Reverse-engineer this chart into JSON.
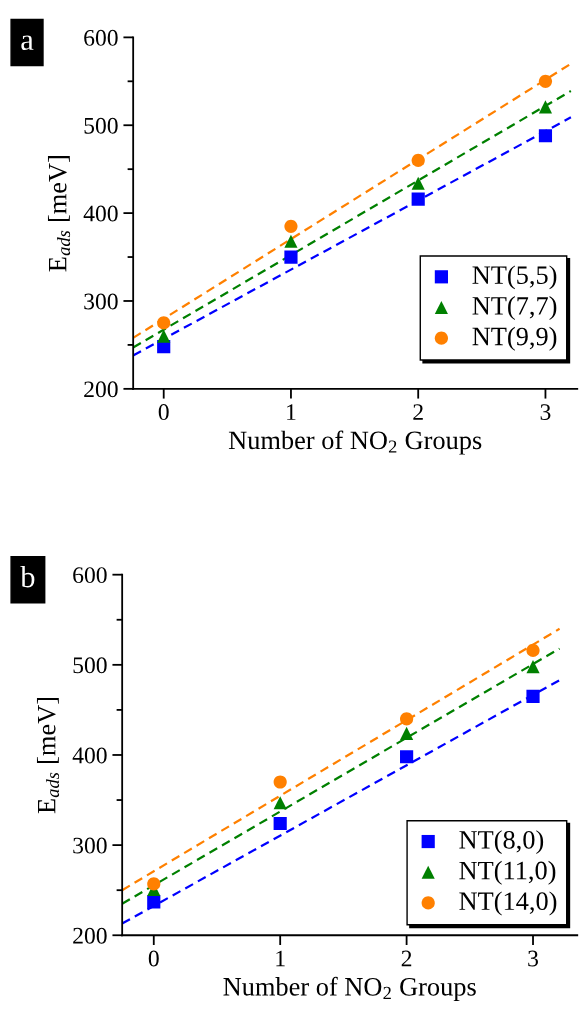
{
  "chart_data": [
    {
      "type": "scatter",
      "xlabel": "Number of NO$_{2}$ Groups",
      "ylabel": "E$_{ads}$ [meV]",
      "x": [
        0,
        1,
        2,
        3
      ],
      "xlim": [
        -0.24,
        3.25
      ],
      "ylim": [
        200,
        600
      ],
      "xticks": [
        0,
        1,
        2,
        3
      ],
      "yticks": [
        200,
        300,
        400,
        500,
        600
      ],
      "legend": "right",
      "grid": false,
      "annotations": [
        "a"
      ],
      "series": [
        {
          "name": "NT(5,5)",
          "color": "#0000ff",
          "marker": "square",
          "values": [
            248,
            350,
            416,
            488
          ]
        },
        {
          "name": "NT(7,7)",
          "color": "#008000",
          "marker": "triangle",
          "values": [
            260,
            368,
            434,
            521
          ]
        },
        {
          "name": "NT(9,9)",
          "color": "#ff8000",
          "marker": "circle",
          "values": [
            275,
            385,
            460,
            550
          ]
        },
        {
          "type": "line",
          "color": "#0000ff",
          "line_style": "dashed",
          "x": [
            -0.24,
            3.2
          ],
          "values": [
            238,
            509
          ]
        },
        {
          "type": "line",
          "color": "#008000",
          "line_style": "dashed",
          "x": [
            -0.24,
            3.2
          ],
          "values": [
            247,
            539
          ]
        },
        {
          "type": "line",
          "color": "#ff8000",
          "line_style": "dashed",
          "x": [
            -0.24,
            3.2
          ],
          "values": [
            258,
            570
          ]
        }
      ]
    },
    {
      "type": "scatter",
      "xlabel": "Number of NO$_{2}$ Groups",
      "ylabel": "E$_{ads}$ [meV]",
      "x": [
        0,
        1,
        2,
        3
      ],
      "xlim": [
        -0.25,
        3.35
      ],
      "ylim": [
        200,
        600
      ],
      "xticks": [
        0,
        1,
        2,
        3
      ],
      "yticks": [
        200,
        300,
        400,
        500,
        600
      ],
      "legend": "bottom right",
      "grid": false,
      "annotations": [
        "b"
      ],
      "series": [
        {
          "name": "NT(8,0)",
          "color": "#0000ff",
          "marker": "square",
          "values": [
            237,
            324,
            398,
            465
          ]
        },
        {
          "name": "NT(11,0)",
          "color": "#008000",
          "marker": "triangle",
          "values": [
            251,
            347,
            424,
            498
          ]
        },
        {
          "name": "NT(14,0)",
          "color": "#ff8000",
          "marker": "circle",
          "values": [
            257,
            370,
            440,
            516
          ]
        },
        {
          "type": "line",
          "color": "#0000ff",
          "line_style": "dashed",
          "x": [
            -0.25,
            3.21
          ],
          "values": [
            213,
            483
          ]
        },
        {
          "type": "line",
          "color": "#008000",
          "line_style": "dashed",
          "x": [
            -0.25,
            3.21
          ],
          "values": [
            235,
            518
          ]
        },
        {
          "type": "line",
          "color": "#ff8000",
          "line_style": "dashed",
          "x": [
            -0.25,
            3.21
          ],
          "values": [
            250,
            540
          ]
        }
      ]
    }
  ]
}
